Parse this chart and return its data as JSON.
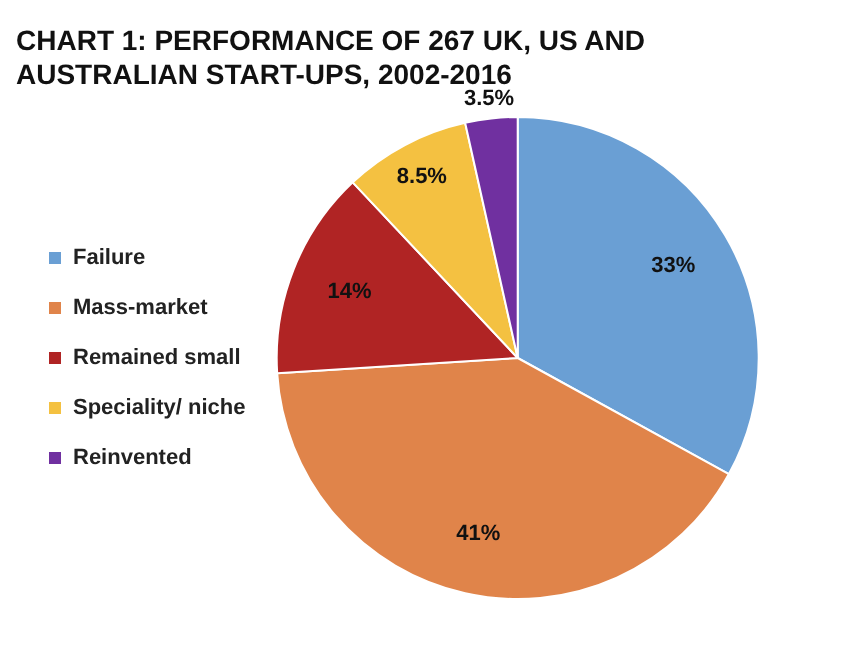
{
  "chart_data": {
    "type": "pie",
    "title": "CHART 1: PERFORMANCE OF 267 UK, US AND AUSTRALIAN START-UPS, 2002-2016",
    "categories": [
      "Failure",
      "Mass-market",
      "Remained small",
      "Speciality/ niche",
      "Reinvented"
    ],
    "values": [
      33,
      41,
      14,
      8.5,
      3.5
    ],
    "value_labels": [
      "33%",
      "41%",
      "14%",
      "8.5%",
      "3.5%"
    ],
    "colors": [
      "#6a9fd4",
      "#e0844a",
      "#b02424",
      "#f4c141",
      "#7030a0"
    ],
    "legend": "left"
  }
}
